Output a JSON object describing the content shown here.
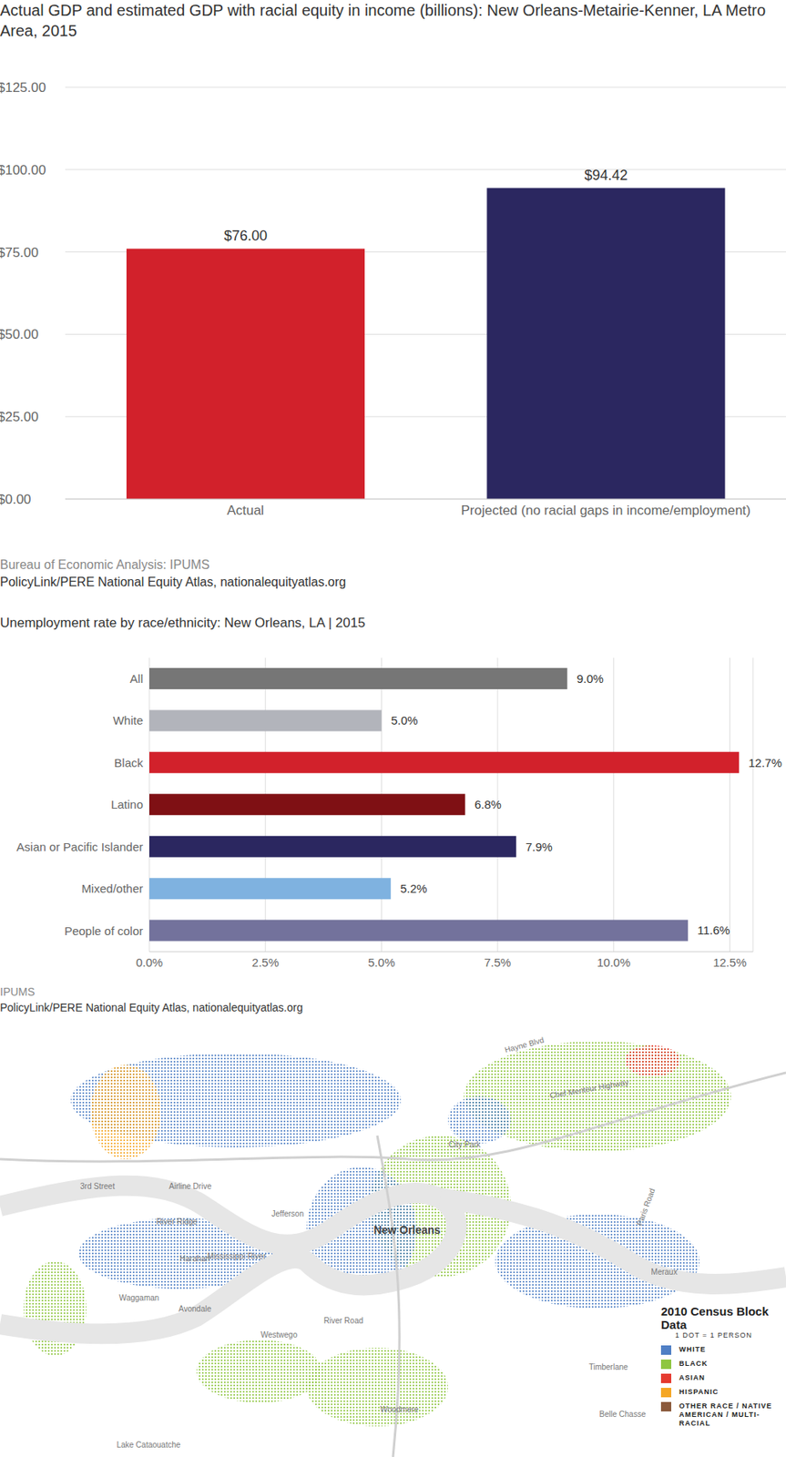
{
  "chart_data": [
    {
      "type": "bar",
      "title": "Actual GDP and estimated GDP with racial equity in income (billions): New Orleans-Metairie-Kenner, LA Metro Area, 2015",
      "categories": [
        "Actual",
        "Projected (no racial gaps in income/employment)"
      ],
      "values": [
        76.0,
        94.42
      ],
      "value_labels": [
        "$76.00",
        "$94.42"
      ],
      "colors": [
        "#d2212b",
        "#2b2760"
      ],
      "ylim": [
        0,
        125
      ],
      "yticks": [
        {
          "value": 0,
          "label": "$0.00"
        },
        {
          "value": 25,
          "label": "$25.00"
        },
        {
          "value": 50,
          "label": "$50.00"
        },
        {
          "value": 75,
          "label": "$75.00"
        },
        {
          "value": 100,
          "label": "$100.00"
        },
        {
          "value": 125,
          "label": "$125.00"
        }
      ],
      "grid": true,
      "data_labels": true,
      "sources": [
        "Bureau of Economic Analysis: IPUMS",
        "PolicyLink/PERE National Equity Atlas, nationalequityatlas.org"
      ]
    },
    {
      "type": "bar",
      "orientation": "horizontal",
      "title": "Unemployment rate by race/ethnicity: New Orleans, LA | 2015",
      "categories": [
        "All",
        "White",
        "Black",
        "Latino",
        "Asian or Pacific Islander",
        "Mixed/other",
        "People of color"
      ],
      "values": [
        9.0,
        5.0,
        12.7,
        6.8,
        7.9,
        5.2,
        11.6
      ],
      "value_labels": [
        "9.0%",
        "5.0%",
        "12.7%",
        "6.8%",
        "7.9%",
        "5.2%",
        "11.6%"
      ],
      "colors": [
        "#767676",
        "#b2b4bb",
        "#d2212b",
        "#7f1014",
        "#2b2760",
        "#7fb2e0",
        "#73729c"
      ],
      "xlim": [
        0,
        13
      ],
      "xticks": [
        {
          "value": 0,
          "label": "0.0%"
        },
        {
          "value": 2.5,
          "label": "2.5%"
        },
        {
          "value": 5,
          "label": "5.0%"
        },
        {
          "value": 7.5,
          "label": "7.5%"
        },
        {
          "value": 10,
          "label": "10.0%"
        },
        {
          "value": 12.5,
          "label": "12.5%"
        }
      ],
      "grid": true,
      "data_labels": true,
      "sources": [
        "IPUMS",
        "PolicyLink/PERE National Equity Atlas, nationalequityatlas.org"
      ]
    }
  ],
  "map": {
    "title": "2010 Census Block Data",
    "subtitle": "1 DOT = 1 PERSON",
    "series": [
      {
        "name": "WHITE",
        "color": "#4f7fc5"
      },
      {
        "name": "BLACK",
        "color": "#8ec63f"
      },
      {
        "name": "ASIAN",
        "color": "#e53a2f"
      },
      {
        "name": "HISPANIC",
        "color": "#f5a623"
      },
      {
        "name": "OTHER RACE / NATIVE AMERICAN / MULTI-RACIAL",
        "color": "#8b5a3c"
      }
    ],
    "labels": [
      "Hayne Blvd",
      "Chef Menteur Highway",
      "City Park",
      "3rd Street",
      "Airline Drive",
      "River Ridge",
      "Jefferson",
      "Harahan",
      "Mississippi River",
      "New Orleans",
      "River Road",
      "Waggaman",
      "Avondale",
      "Westwego",
      "Timberlane",
      "Woodmere",
      "Belle Chasse",
      "Meraux",
      "Paris Road",
      "Lake Cataouatche"
    ]
  }
}
